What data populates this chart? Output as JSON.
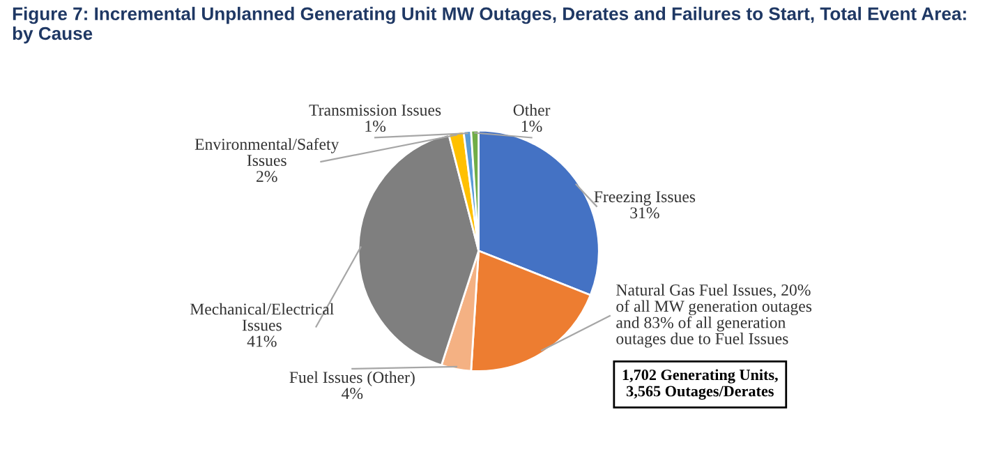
{
  "chart_data": {
    "type": "pie",
    "title": "Figure 7: Incremental Unplanned Generating Unit MW Outages, Derates and Failures to Start, Total Event Area:\nby Cause",
    "categories": [
      "Freezing Issues",
      "Natural Gas Fuel Issues, 20%\nof all MW generation outages\nand 83% of all generation\noutages due to Fuel Issues",
      "Fuel Issues (Other)",
      "Mechanical/Electrical\nIssues",
      "Environmental/Safety\nIssues",
      "Transmission Issues",
      "Other"
    ],
    "values": [
      31,
      20,
      4,
      41,
      2,
      1,
      1
    ],
    "value_labels": [
      "31%",
      null,
      "4%",
      "41%",
      "2%",
      "1%",
      "1%"
    ],
    "colors": [
      "#4472c4",
      "#ed7d31",
      "#f4b183",
      "#7f7f7f",
      "#ffc000",
      "#5b9bd5",
      "#70ad47"
    ],
    "annotations": [
      "1,702 Generating Units,\n3,565 Outages/Derates"
    ],
    "legend": false
  }
}
